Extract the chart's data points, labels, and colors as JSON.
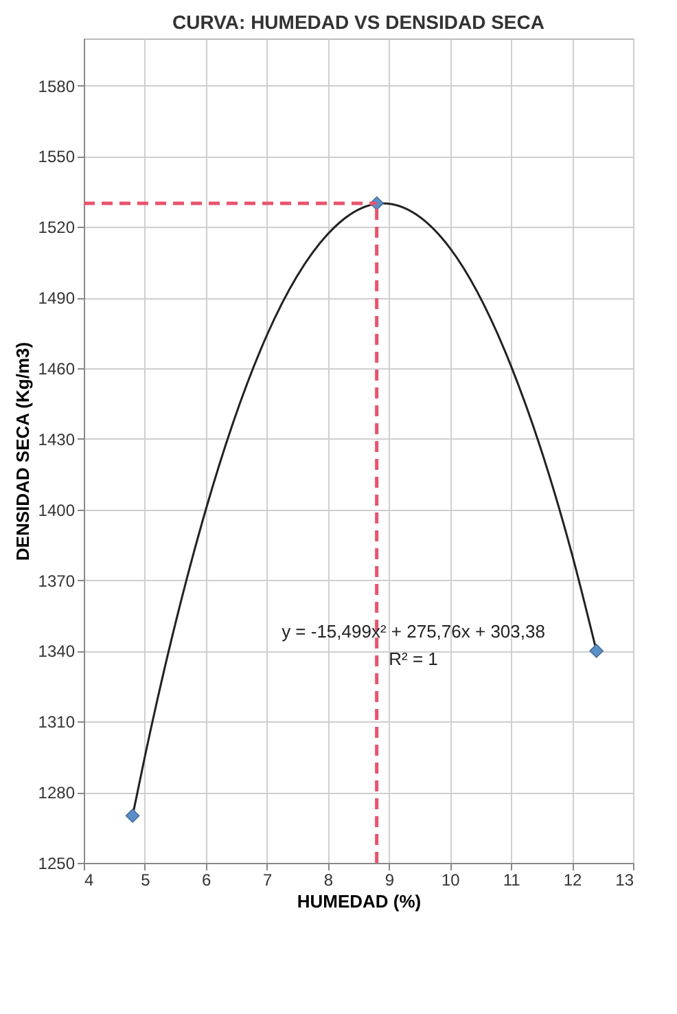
{
  "chart_data": {
    "type": "scatter",
    "title": "CURVA: HUMEDAD VS DENSIDAD SECA",
    "xlabel": "HUMEDAD (%)",
    "ylabel": "DENSIDAD SECA (Kg/m3)",
    "xlim": [
      4,
      13
    ],
    "ylim": [
      1250,
      1600
    ],
    "xticks": [
      4,
      5,
      6,
      7,
      8,
      9,
      10,
      11,
      12,
      13
    ],
    "yticks": [
      1250,
      1280,
      1310,
      1340,
      1370,
      1400,
      1430,
      1460,
      1490,
      1520,
      1550,
      1580
    ],
    "grid": true,
    "series": [
      {
        "type": "line",
        "color": "#222222",
        "line_style": "solid",
        "x": [
          4.8,
          5,
          6,
          7,
          8,
          8.9,
          10,
          11,
          12,
          12.4
        ],
        "values": [
          1270,
          1295,
          1400,
          1474,
          1517,
          1530,
          1511,
          1461,
          1381,
          1340
        ]
      },
      {
        "marker": "diamond",
        "color": "#5b8fc9",
        "x": [
          4.8,
          8.8,
          12.4
        ],
        "values": [
          1270,
          1530,
          1340
        ]
      }
    ],
    "ref_lines": [
      {
        "axis": "x",
        "value": 8.8,
        "color": "#e8546c",
        "line_style": "dashed"
      },
      {
        "axis": "y",
        "value": 1530,
        "color": "#e8546c",
        "line_style": "dashed"
      }
    ],
    "annotations": [
      "y = -15,499x² + 275,76x + 303,38",
      "R² = 1"
    ]
  }
}
